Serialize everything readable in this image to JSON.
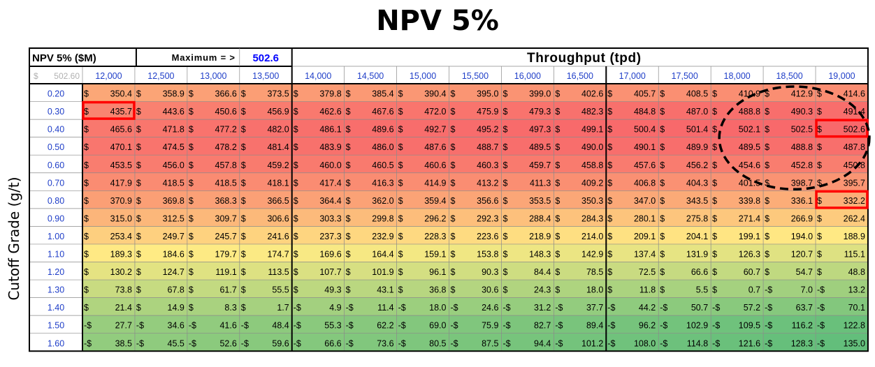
{
  "chart_data": {
    "type": "heatmap",
    "title": "NPV 5%",
    "corner_label": "NPV 5% ($M)",
    "maximum_label": "Maximum = >",
    "maximum_value": "502.6",
    "corner_value": "502.60",
    "xlabel": "Throughput (tpd)",
    "ylabel": "Cutoff Grade (g/t)",
    "currency_symbol": "$",
    "negative_prefix": "-$",
    "x": [
      "12,000",
      "12,500",
      "13,000",
      "13,500",
      "14,000",
      "14,500",
      "15,000",
      "15,500",
      "16,000",
      "16,500",
      "17,000",
      "17,500",
      "18,000",
      "18,500",
      "19,000"
    ],
    "y": [
      "0.20",
      "0.30",
      "0.40",
      "0.50",
      "0.60",
      "0.70",
      "0.80",
      "0.90",
      "1.00",
      "1.10",
      "1.20",
      "1.30",
      "1.40",
      "1.50",
      "1.60"
    ],
    "values": [
      [
        350.4,
        358.9,
        366.6,
        373.5,
        379.8,
        385.4,
        390.4,
        395.0,
        399.0,
        402.6,
        405.7,
        408.5,
        410.9,
        412.9,
        414.6
      ],
      [
        435.7,
        443.6,
        450.6,
        456.9,
        462.6,
        467.6,
        472.0,
        475.9,
        479.3,
        482.3,
        484.8,
        487.0,
        488.8,
        490.3,
        491.4
      ],
      [
        465.6,
        471.8,
        477.2,
        482.0,
        486.1,
        489.6,
        492.7,
        495.2,
        497.3,
        499.1,
        500.4,
        501.4,
        502.1,
        502.5,
        502.6
      ],
      [
        470.1,
        474.5,
        478.2,
        481.4,
        483.9,
        486.0,
        487.6,
        488.7,
        489.5,
        490.0,
        490.1,
        489.9,
        489.5,
        488.8,
        487.8
      ],
      [
        453.5,
        456.0,
        457.8,
        459.2,
        460.0,
        460.5,
        460.6,
        460.3,
        459.7,
        458.8,
        457.6,
        456.2,
        454.6,
        452.8,
        450.8
      ],
      [
        417.9,
        418.5,
        418.5,
        418.1,
        417.4,
        416.3,
        414.9,
        413.2,
        411.3,
        409.2,
        406.8,
        404.3,
        401.5,
        398.7,
        395.7
      ],
      [
        370.9,
        369.8,
        368.3,
        366.5,
        364.4,
        362.0,
        359.4,
        356.6,
        353.5,
        350.3,
        347.0,
        343.5,
        339.8,
        336.1,
        332.2
      ],
      [
        315.0,
        312.5,
        309.7,
        306.6,
        303.3,
        299.8,
        296.2,
        292.3,
        288.4,
        284.3,
        280.1,
        275.8,
        271.4,
        266.9,
        262.4
      ],
      [
        253.4,
        249.7,
        245.7,
        241.6,
        237.3,
        232.9,
        228.3,
        223.6,
        218.9,
        214.0,
        209.1,
        204.1,
        199.1,
        194.0,
        188.9
      ],
      [
        189.3,
        184.6,
        179.7,
        174.7,
        169.6,
        164.4,
        159.1,
        153.8,
        148.3,
        142.9,
        137.4,
        131.9,
        126.3,
        120.7,
        115.1
      ],
      [
        130.2,
        124.7,
        119.1,
        113.5,
        107.7,
        101.9,
        96.1,
        90.3,
        84.4,
        78.5,
        72.5,
        66.6,
        60.7,
        54.7,
        48.8
      ],
      [
        73.8,
        67.8,
        61.7,
        55.5,
        49.3,
        43.1,
        36.8,
        30.6,
        24.3,
        18.0,
        11.8,
        5.5,
        0.7,
        -7.0,
        -13.2
      ],
      [
        21.4,
        14.9,
        8.3,
        1.7,
        -4.9,
        -11.4,
        -18.0,
        -24.6,
        -31.2,
        -37.7,
        -44.2,
        -50.7,
        -57.2,
        -63.7,
        -70.1
      ],
      [
        -27.7,
        -34.6,
        -41.6,
        -48.4,
        -55.3,
        -62.2,
        -69.0,
        -75.9,
        -82.7,
        -89.4,
        -96.2,
        -102.9,
        -109.5,
        -116.2,
        -122.8
      ],
      [
        -38.5,
        -45.5,
        -52.6,
        -59.6,
        -66.6,
        -73.6,
        -80.5,
        -87.5,
        -94.4,
        -101.2,
        -108.0,
        -114.8,
        -121.6,
        -128.3,
        -135.0
      ]
    ],
    "decimals": 1,
    "color_scale": {
      "high": "#f8696b",
      "mid": "#ffeb84",
      "low": "#63be7b"
    },
    "highlight_color": "#ff0000",
    "highlighted_cells": [
      {
        "row": 1,
        "col": 0
      },
      {
        "row": 2,
        "col": 14
      },
      {
        "row": 6,
        "col": 14
      }
    ],
    "circled_region": {
      "rows": [
        0,
        5
      ],
      "cols": [
        12,
        14
      ],
      "style": "dashed-ellipse"
    },
    "axis_label_color": "#1f3ec8",
    "maximum_value_color": "#0000ff"
  }
}
